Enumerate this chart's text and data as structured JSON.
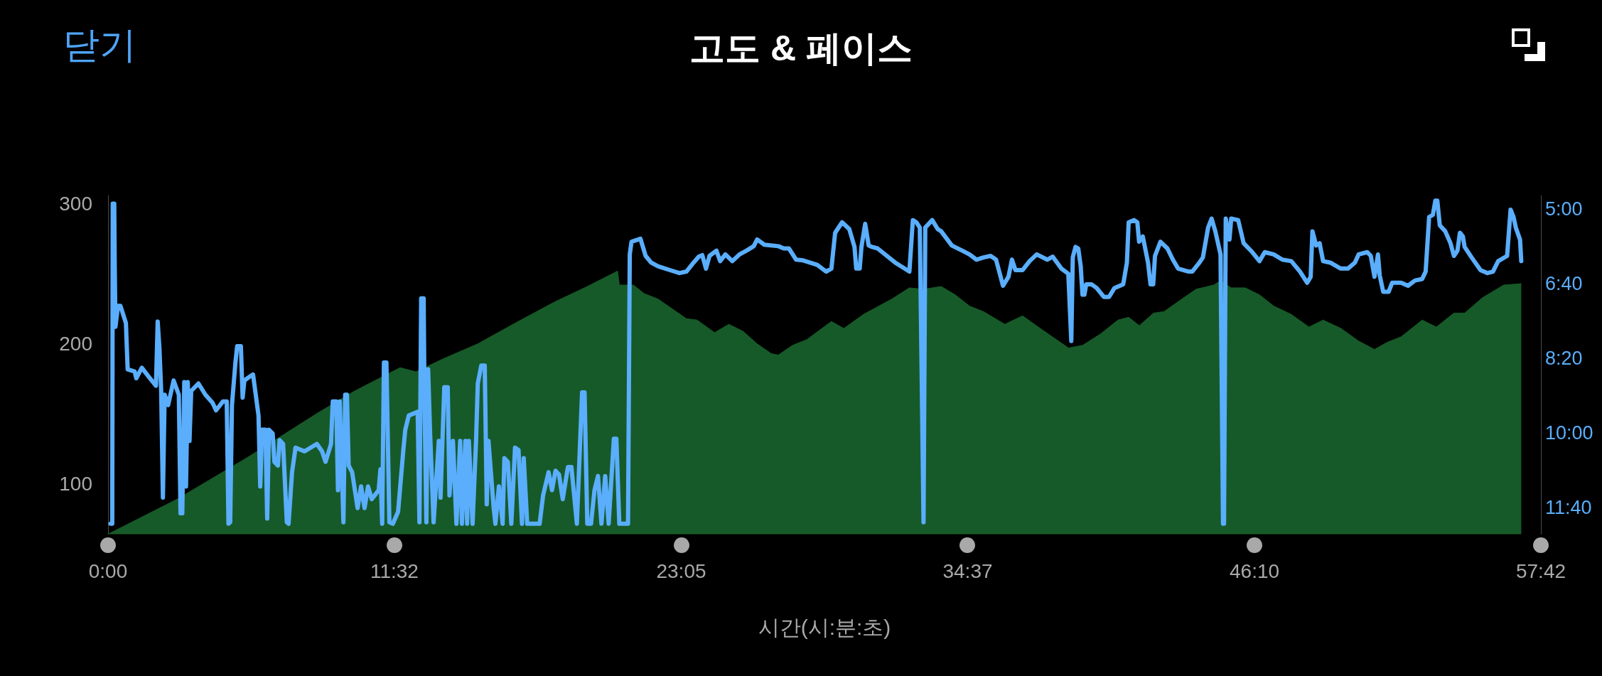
{
  "chart_data": {
    "type": "area",
    "title": "고도 & 페이스",
    "xlabel": "시간(시:분:초)",
    "annotations": [
      "닫기"
    ],
    "xlim": [
      0,
      57.7
    ],
    "xticks": [
      {
        "value": 0,
        "label": "0:00"
      },
      {
        "value": 11.533,
        "label": "11:32"
      },
      {
        "value": 23.083,
        "label": "23:05"
      },
      {
        "value": 34.617,
        "label": "34:37"
      },
      {
        "value": 46.167,
        "label": "46:10"
      },
      {
        "value": 57.7,
        "label": "57:42"
      }
    ],
    "ylim": [
      64,
      306
    ],
    "yticks": [
      100,
      200,
      300
    ],
    "y2lim": [
      736,
      282
    ],
    "y2ticks": [
      {
        "value": 300,
        "label": "5:00"
      },
      {
        "value": 400,
        "label": "6:40"
      },
      {
        "value": 500,
        "label": "8:20"
      },
      {
        "value": 600,
        "label": "10:00"
      },
      {
        "value": 700,
        "label": "11:40"
      }
    ],
    "series": [
      {
        "color": "#175a29",
        "x": [
          0,
          2.78,
          5.63,
          8.48,
          9.9,
          11.76,
          12.4,
          13.46,
          14.89,
          16.31,
          17.99,
          19.3,
          20.52,
          20.59,
          21.16,
          21.58,
          22.15,
          22.72,
          23.29,
          23.72,
          24.43,
          25.0,
          25.57,
          26.14,
          26.71,
          26.99,
          27.57,
          28.14,
          29.13,
          29.63,
          30.42,
          31.56,
          32.27,
          32.84,
          33.55,
          34.12,
          34.69,
          35.26,
          36.11,
          36.83,
          37.54,
          38.11,
          38.68,
          39.25,
          39.96,
          40.67,
          41.1,
          41.53,
          42.1,
          42.52,
          43.24,
          43.81,
          44.52,
          44.8,
          45.23,
          45.8,
          46.37,
          46.94,
          47.65,
          48.36,
          48.93,
          49.65,
          50.36,
          51.0,
          51.5,
          52.07,
          52.92,
          53.49,
          54.2,
          54.63,
          55.35,
          56.2,
          56.91
        ],
        "values": [
          64,
          89,
          119,
          151,
          166,
          183,
          180,
          189,
          200,
          214,
          230,
          241,
          252,
          242,
          242,
          236,
          232,
          225,
          218,
          217,
          208,
          214,
          209,
          200,
          193,
          192,
          199,
          203,
          216,
          211,
          221,
          232,
          240,
          239,
          241,
          235,
          227,
          223,
          214,
          220,
          211,
          204,
          197,
          199,
          207,
          217,
          219,
          213,
          222,
          223,
          232,
          239,
          242,
          245,
          240,
          240,
          235,
          227,
          221,
          212,
          217,
          211,
          202,
          196,
          201,
          205,
          217,
          212,
          222,
          222,
          233,
          242,
          243
        ]
      },
      {
        "type": "line",
        "axis": "y2",
        "color": "#5aaefc",
        "x": [
          0.1,
          0.17,
          0.19,
          0.25,
          0.27,
          0.3,
          0.4,
          0.5,
          0.72,
          0.79,
          1.07,
          1.14,
          1.36,
          1.64,
          1.93,
          2.0,
          2.07,
          2.14,
          2.21,
          2.28,
          2.42,
          2.64,
          2.85,
          2.92,
          2.99,
          3.07,
          3.14,
          3.21,
          3.28,
          3.35,
          3.64,
          3.92,
          4.21,
          4.35,
          4.63,
          4.78,
          4.85,
          4.92,
          4.99,
          5.13,
          5.2,
          5.35,
          5.42,
          5.49,
          5.7,
          5.84,
          6.06,
          6.13,
          6.2,
          6.34,
          6.41,
          6.48,
          6.63,
          6.7,
          6.84,
          6.91,
          7.05,
          7.2,
          7.27,
          7.41,
          7.55,
          7.91,
          8.41,
          8.62,
          8.76,
          8.98,
          9.05,
          9.19,
          9.26,
          9.33,
          9.48,
          9.55,
          9.62,
          9.69,
          9.83,
          10.05,
          10.19,
          10.33,
          10.47,
          10.62,
          10.9,
          10.97,
          11.04,
          11.11,
          11.21,
          11.33,
          11.47,
          11.68,
          11.9,
          11.97,
          12.11,
          12.47,
          12.54,
          12.61,
          12.71,
          12.75,
          12.82,
          12.89,
          12.97,
          13.11,
          13.32,
          13.39,
          13.54,
          13.68,
          13.75,
          13.89,
          14.03,
          14.18,
          14.25,
          14.39,
          14.46,
          14.53,
          14.68,
          14.82,
          14.89,
          15.03,
          15.17,
          15.25,
          15.32,
          15.53,
          15.6,
          15.74,
          15.89,
          15.96,
          16.1,
          16.24,
          16.39,
          16.53,
          16.67,
          16.74,
          16.88,
          17.38,
          17.52,
          17.74,
          17.88,
          18.02,
          18.16,
          18.31,
          18.52,
          18.66,
          18.88,
          19.09,
          19.19,
          19.3,
          19.45,
          19.59,
          19.73,
          19.87,
          20.02,
          20.16,
          20.37,
          20.47,
          20.59,
          20.94,
          21.01,
          21.08,
          21.44,
          21.65,
          21.87,
          22.15,
          22.72,
          23.01,
          23.29,
          23.58,
          23.79,
          23.93,
          24.08,
          24.22,
          24.5,
          24.65,
          24.86,
          25.14,
          25.43,
          25.71,
          26.0,
          26.14,
          26.43,
          27.0,
          27.21,
          27.42,
          27.71,
          27.99,
          28.56,
          28.92,
          29.13,
          29.28,
          29.56,
          29.85,
          30.06,
          30.13,
          30.27,
          30.34,
          30.49,
          30.63,
          30.77,
          30.99,
          31.7,
          32.27,
          32.41,
          32.55,
          32.69,
          32.84,
          32.91,
          33.19,
          33.41,
          33.55,
          33.98,
          34.4,
          34.69,
          34.97,
          35.26,
          35.54,
          35.76,
          36.04,
          36.26,
          36.4,
          36.54,
          36.83,
          37.11,
          37.4,
          37.82,
          38.04,
          38.39,
          38.67,
          38.79,
          38.85,
          38.96,
          39.07,
          39.17,
          39.24,
          39.32,
          39.39,
          39.6,
          39.81,
          40.1,
          40.31,
          40.53,
          40.88,
          41.03,
          41.1,
          41.31,
          41.45,
          41.52,
          41.67,
          41.88,
          41.98,
          42.09,
          42.16,
          42.38,
          42.66,
          42.88,
          43.09,
          43.52,
          43.66,
          43.95,
          44.09,
          44.3,
          44.44,
          44.59,
          44.8,
          44.9,
          44.94,
          45.01,
          45.16,
          45.23,
          45.51,
          45.73,
          46.08,
          46.37,
          46.58,
          46.94,
          47.29,
          47.65,
          48.0,
          48.29,
          48.43,
          48.5,
          48.65,
          48.79,
          48.93,
          49.22,
          49.64,
          49.93,
          50.21,
          50.36,
          50.71,
          50.85,
          51.0,
          51.14,
          51.21,
          51.35,
          51.57,
          51.71,
          52.07,
          52.35,
          52.63,
          52.92,
          53.06,
          53.2,
          53.35,
          53.45,
          53.53,
          53.63,
          53.85,
          54.06,
          54.2,
          54.34,
          54.44,
          54.56,
          54.63,
          54.91,
          55.27,
          55.55,
          55.77,
          55.98,
          56.34,
          56.48,
          56.6,
          56.69,
          56.86,
          56.91
        ],
        "values": [
          722,
          722,
          293,
          293,
          377,
          458,
          430,
          430,
          453,
          515,
          518,
          527,
          513,
          525,
          537,
          451,
          487,
          544,
          687,
          549,
          563,
          530,
          549,
          708,
          708,
          532,
          672,
          532,
          611,
          544,
          534,
          549,
          560,
          570,
          558,
          558,
          722,
          720,
          563,
          506,
          484,
          484,
          553,
          530,
          525,
          522,
          577,
          672,
          596,
          596,
          715,
          596,
          601,
          639,
          644,
          610,
          615,
          720,
          722,
          653,
          620,
          625,
          615,
          625,
          639,
          615,
          558,
          558,
          677,
          558,
          720,
          549,
          549,
          644,
          653,
          701,
          672,
          701,
          672,
          689,
          677,
          649,
          722,
          506,
          506,
          720,
          722,
          706,
          620,
          596,
          577,
          572,
          720,
          420,
          420,
          572,
          720,
          515,
          601,
          720,
          611,
          687,
          539,
          539,
          684,
          611,
          722,
          611,
          722,
          611,
          722,
          611,
          722,
          611,
          534,
          510,
          510,
          696,
          611,
          701,
          722,
          672,
          722,
          634,
          639,
          722,
          620,
          623,
          722,
          634,
          722,
          722,
          684,
          653,
          677,
          651,
          656,
          689,
          646,
          646,
          722,
          546,
          546,
          722,
          722,
          677,
          658,
          722,
          658,
          722,
          608,
          608,
          722,
          722,
          361,
          344,
          340,
          363,
          372,
          377,
          383,
          386,
          384,
          372,
          364,
          362,
          380,
          363,
          356,
          370,
          361,
          370,
          361,
          356,
          350,
          341,
          348,
          350,
          353,
          353,
          368,
          369,
          375,
          384,
          380,
          332,
          318,
          327,
          351,
          380,
          380,
          351,
          320,
          349,
          351,
          353,
          372,
          384,
          315,
          318,
          325,
          720,
          325,
          315,
          327,
          330,
          349,
          356,
          361,
          368,
          365,
          363,
          368,
          403,
          391,
          368,
          382,
          382,
          370,
          361,
          368,
          364,
          380,
          387,
          477,
          365,
          351,
          353,
          377,
          415,
          415,
          401,
          401,
          406,
          418,
          418,
          406,
          401,
          372,
          318,
          315,
          318,
          344,
          337,
          372,
          401,
          401,
          363,
          344,
          353,
          368,
          380,
          384,
          384,
          372,
          365,
          325,
          313,
          330,
          361,
          722,
          722,
          313,
          341,
          313,
          315,
          346,
          358,
          370,
          358,
          361,
          368,
          370,
          384,
          399,
          391,
          330,
          349,
          346,
          370,
          372,
          380,
          380,
          372,
          361,
          358,
          363,
          391,
          361,
          389,
          411,
          411,
          399,
          399,
          403,
          396,
          394,
          384,
          311,
          308,
          289,
          289,
          322,
          330,
          346,
          363,
          356,
          332,
          337,
          351,
          365,
          382,
          386,
          384,
          370,
          363,
          301,
          311,
          325,
          341,
          370
        ]
      }
    ]
  }
}
